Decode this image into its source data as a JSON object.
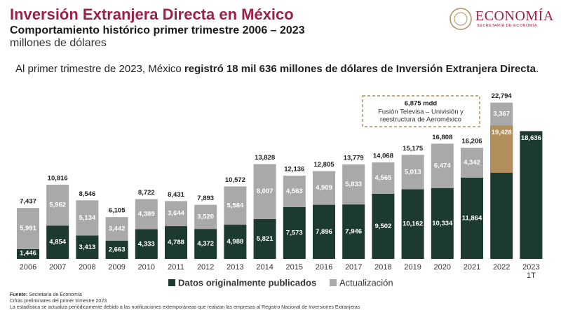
{
  "chart_data": {
    "type": "stacked_bar",
    "title": "Inversión Extranjera Directa en México",
    "subtitle": "Comportamiento histórico primer trimestre 2006 – 2023",
    "unit": "millones de dólares",
    "headline": [
      "Al primer trimestre de 2023, México ",
      "registró 18 mil 636 millones de dólares de Inversión Extranjera Directa",
      "."
    ],
    "logo": "ECONOMÍA",
    "logo_subtitle": "SECRETARÍA DE ECONOMÍA",
    "categories": [
      "2006",
      "2007",
      "2008",
      "2009",
      "2010",
      "2011",
      "2012",
      "2013",
      "2014",
      "2015",
      "2016",
      "2017",
      "2018",
      "2019",
      "2020",
      "2021",
      "2022",
      "2023\n1T"
    ],
    "series": [
      {
        "name": "Datos originalmente publicados",
        "color": "#1d3a2e",
        "values": [
          1446,
          4854,
          3413,
          2663,
          4333,
          4788,
          4372,
          4988,
          5821,
          7573,
          7896,
          7946,
          9502,
          10162,
          10334,
          11864,
          19428,
          18636
        ],
        "value_labels": [
          "1,446",
          "4,854",
          "3,413",
          "2,663",
          "4,333",
          "4,788",
          "4,372",
          "4,988",
          "5,821",
          "7,573",
          "7,896",
          "7,946",
          "9,502",
          "10,162",
          "10,334",
          "11,864",
          "19,428",
          "18,636"
        ]
      },
      {
        "name": "Actualización",
        "color": "#a9a9a9",
        "values": [
          5991,
          5962,
          5134,
          3442,
          4389,
          3644,
          3520,
          5584,
          8007,
          4563,
          4909,
          5833,
          4565,
          5013,
          6474,
          4342,
          3367,
          null
        ],
        "value_labels": [
          "5,991",
          "5,962",
          "5,134",
          "3,442",
          "4,389",
          "3,644",
          "3,520",
          "5,584",
          "8,007",
          "4,563",
          "4,909",
          "5,833",
          "4,565",
          "5,013",
          "6,474",
          "4,342",
          "3,367",
          null
        ]
      }
    ],
    "totals": [
      7437,
      10816,
      8546,
      6105,
      8722,
      8431,
      7893,
      10572,
      13828,
      12136,
      12805,
      13779,
      14068,
      15175,
      16808,
      16206,
      22794,
      null
    ],
    "total_labels": [
      "7,437",
      "10,816",
      "8,546",
      "6,105",
      "8,722",
      "8,431",
      "7,893",
      "10,572",
      "13,828",
      "12,136",
      "12,805",
      "13,779",
      "14,068",
      "15,175",
      "16,808",
      "16,206",
      "22,794",
      null
    ],
    "annotation": {
      "category": 16,
      "value": 6875,
      "label": "6,875 mdd",
      "color": "#b38e5d",
      "text": [
        "Fusión Televisa – Univisión y",
        "reestructura de Aeroméxico"
      ]
    },
    "ylim": [
      0,
      25000
    ],
    "footnotes": [
      "Secretaría de Economía",
      "Cifras preliminares del primer trimestre 2023",
      "La estadística se actualiza periódicamente debido a las notificaciones extemporáneas que realizan las empresas al Registro Nacional de Inversiones Extranjeras"
    ],
    "footnote_prefix": "Fuente:"
  }
}
